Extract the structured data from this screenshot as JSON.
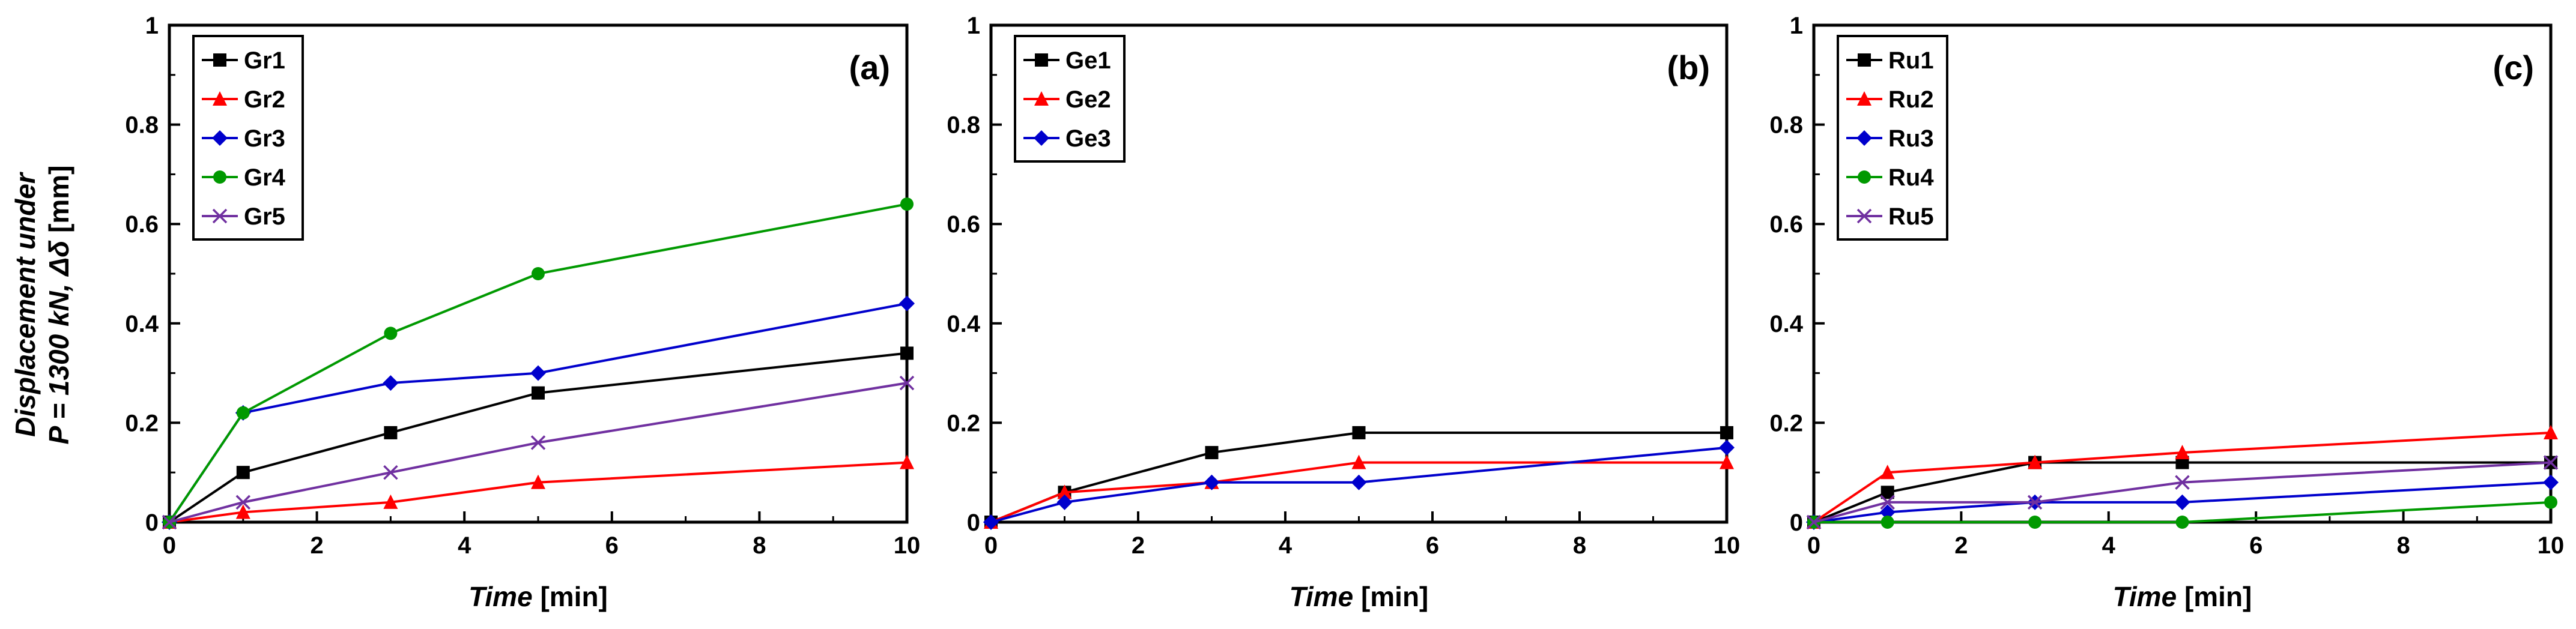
{
  "y_axis_title": {
    "line1": "Displacement under",
    "line2_italic": "P = 1300 kN, Δδ",
    "line2_unit": " [mm]"
  },
  "x_axis_title": {
    "italic": "Time",
    "unit": " [min]"
  },
  "chart_data": [
    {
      "type": "line",
      "panel_label": "(a)",
      "xlabel": "Time [min]",
      "ylabel": "Displacement under P = 1300 kN, Δδ [mm]",
      "xlim": [
        0,
        10
      ],
      "ylim": [
        0,
        1
      ],
      "xticks": [
        0,
        2,
        4,
        6,
        8,
        10
      ],
      "yticks": [
        0,
        0.2,
        0.4,
        0.6,
        0.8,
        1
      ],
      "ytick_labels": [
        "0",
        "0.2",
        "0.4",
        "0.6",
        "0.8",
        "1"
      ],
      "x": [
        0,
        1,
        3,
        5,
        10
      ],
      "legend_position": "top-left",
      "series": [
        {
          "name": "Gr1",
          "color": "#000000",
          "marker": "square",
          "values": [
            0,
            0.1,
            0.18,
            0.26,
            0.34
          ]
        },
        {
          "name": "Gr2",
          "color": "#ff0000",
          "marker": "triangle",
          "values": [
            0,
            0.02,
            0.04,
            0.08,
            0.12
          ]
        },
        {
          "name": "Gr3",
          "color": "#0000cc",
          "marker": "diamond",
          "values": [
            0,
            0.22,
            0.28,
            0.3,
            0.44
          ]
        },
        {
          "name": "Gr4",
          "color": "#009900",
          "marker": "circle",
          "values": [
            0,
            0.22,
            0.38,
            0.5,
            0.64
          ]
        },
        {
          "name": "Gr5",
          "color": "#7030a0",
          "marker": "x",
          "values": [
            0,
            0.04,
            0.1,
            0.16,
            0.28
          ]
        }
      ]
    },
    {
      "type": "line",
      "panel_label": "(b)",
      "xlabel": "Time [min]",
      "ylabel": "",
      "xlim": [
        0,
        10
      ],
      "ylim": [
        0,
        1
      ],
      "xticks": [
        0,
        2,
        4,
        6,
        8,
        10
      ],
      "yticks": [
        0,
        0.2,
        0.4,
        0.6,
        0.8,
        1
      ],
      "ytick_labels": [
        "0",
        "0.2",
        "0.4",
        "0.6",
        "0.8",
        "1"
      ],
      "x": [
        0,
        1,
        3,
        5,
        10
      ],
      "legend_position": "top-left",
      "series": [
        {
          "name": "Ge1",
          "color": "#000000",
          "marker": "square",
          "values": [
            0,
            0.06,
            0.14,
            0.18,
            0.18
          ]
        },
        {
          "name": "Ge2",
          "color": "#ff0000",
          "marker": "triangle",
          "values": [
            0,
            0.06,
            0.08,
            0.12,
            0.12
          ]
        },
        {
          "name": "Ge3",
          "color": "#0000cc",
          "marker": "diamond",
          "values": [
            0,
            0.04,
            0.08,
            0.08,
            0.15
          ]
        }
      ]
    },
    {
      "type": "line",
      "panel_label": "(c)",
      "xlabel": "Time [min]",
      "ylabel": "",
      "xlim": [
        0,
        10
      ],
      "ylim": [
        0,
        1
      ],
      "xticks": [
        0,
        2,
        4,
        6,
        8,
        10
      ],
      "yticks": [
        0,
        0.2,
        0.4,
        0.6,
        0.8,
        1
      ],
      "ytick_labels": [
        "0",
        "0.2",
        "0.4",
        "0.6",
        "0.8",
        "1"
      ],
      "x": [
        0,
        1,
        3,
        5,
        10
      ],
      "legend_position": "top-left",
      "series": [
        {
          "name": "Ru1",
          "color": "#000000",
          "marker": "square",
          "values": [
            0,
            0.06,
            0.12,
            0.12,
            0.12
          ]
        },
        {
          "name": "Ru2",
          "color": "#ff0000",
          "marker": "triangle",
          "values": [
            0,
            0.1,
            0.12,
            0.14,
            0.18
          ]
        },
        {
          "name": "Ru3",
          "color": "#0000cc",
          "marker": "diamond",
          "values": [
            0,
            0.02,
            0.04,
            0.04,
            0.08
          ]
        },
        {
          "name": "Ru4",
          "color": "#009900",
          "marker": "circle",
          "values": [
            0,
            0.0,
            0.0,
            0.0,
            0.04
          ]
        },
        {
          "name": "Ru5",
          "color": "#7030a0",
          "marker": "x",
          "values": [
            0,
            0.04,
            0.04,
            0.08,
            0.12
          ]
        }
      ]
    }
  ]
}
